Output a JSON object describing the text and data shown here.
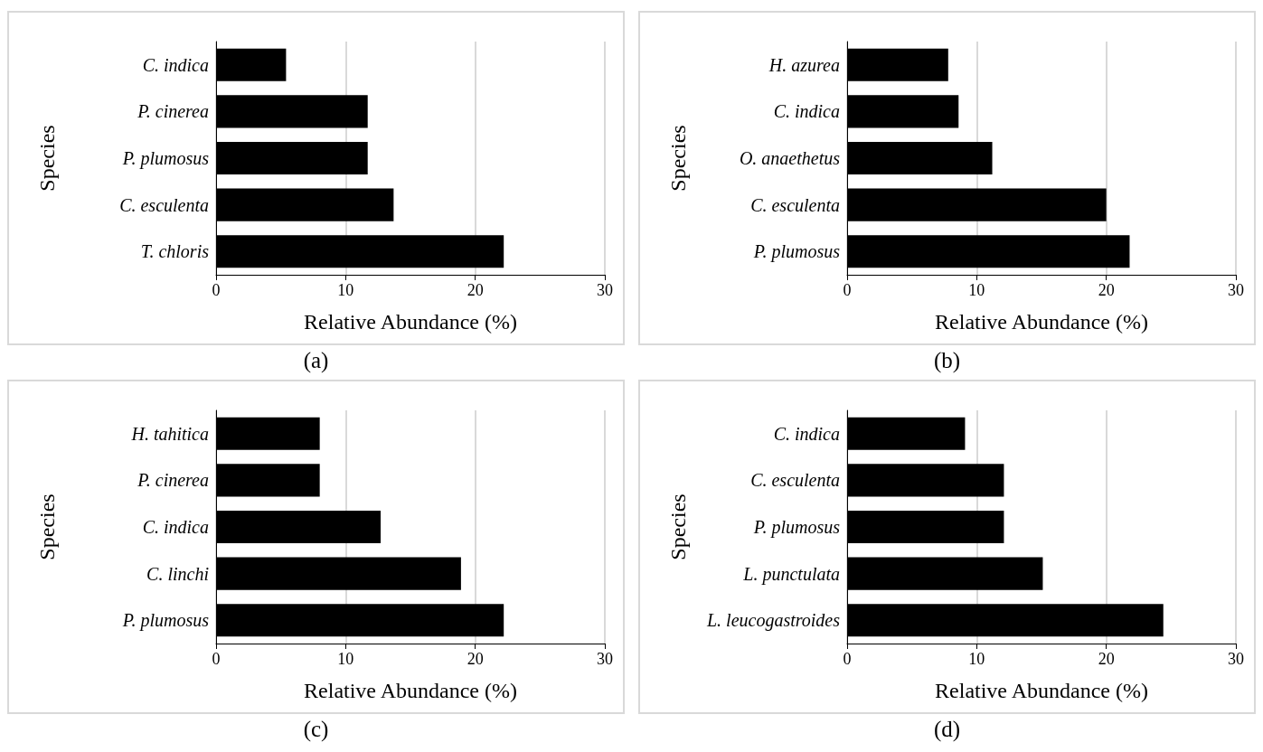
{
  "chart_data": [
    {
      "type": "bar",
      "orientation": "horizontal",
      "categories": [
        "C. indica",
        "P. cinerea",
        "P. plumosus",
        "C. esculenta",
        "T. chloris"
      ],
      "values": [
        5.4,
        11.7,
        11.7,
        13.7,
        22.2
      ],
      "color": "#000000",
      "xlim": [
        0,
        30
      ],
      "xticks": [
        0,
        10,
        20,
        30
      ],
      "xlabel": "Relative Abundance (%)",
      "ylabel": "Species",
      "grid": "x",
      "annotations": [
        "(a)"
      ]
    },
    {
      "type": "bar",
      "orientation": "horizontal",
      "categories": [
        "H. azurea",
        "C. indica",
        "O. anaethetus",
        "C. esculenta",
        "P. plumosus"
      ],
      "values": [
        7.8,
        8.6,
        11.2,
        20.0,
        21.8
      ],
      "color": "#000000",
      "xlim": [
        0,
        30
      ],
      "xticks": [
        0,
        10,
        20,
        30
      ],
      "xlabel": "Relative Abundance (%)",
      "ylabel": "Species",
      "grid": "x",
      "annotations": [
        "(b)"
      ]
    },
    {
      "type": "bar",
      "orientation": "horizontal",
      "categories": [
        "H. tahitica",
        "P. cinerea",
        "C. indica",
        "C. linchi",
        "P. plumosus"
      ],
      "values": [
        8.0,
        8.0,
        12.7,
        18.9,
        22.2
      ],
      "color": "#000000",
      "xlim": [
        0,
        30
      ],
      "xticks": [
        0,
        10,
        20,
        30
      ],
      "xlabel": "Relative Abundance (%)",
      "ylabel": "Species",
      "grid": "x",
      "annotations": [
        "(c)"
      ]
    },
    {
      "type": "bar",
      "orientation": "horizontal",
      "categories": [
        "C. indica",
        "C. esculenta",
        "P. plumosus",
        "L. punctulata",
        "L. leucogastroides"
      ],
      "values": [
        9.1,
        12.1,
        12.1,
        15.1,
        24.4
      ],
      "color": "#000000",
      "xlim": [
        0,
        30
      ],
      "xticks": [
        0,
        10,
        20,
        30
      ],
      "xlabel": "Relative Abundance (%)",
      "ylabel": "Species",
      "grid": "x",
      "annotations": [
        "(d)"
      ]
    }
  ]
}
